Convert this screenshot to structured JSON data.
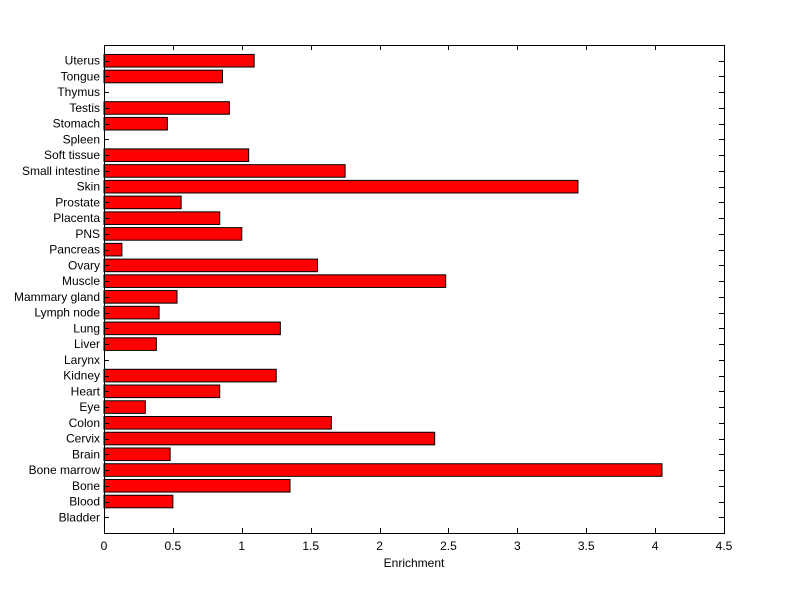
{
  "chart_data": {
    "type": "bar",
    "orientation": "horizontal",
    "title": "",
    "xlabel": "Enrichment",
    "ylabel": "",
    "xlim": [
      0,
      4.5
    ],
    "x_ticks": [
      "0",
      "0.5",
      "1",
      "1.5",
      "2",
      "2.5",
      "3",
      "3.5",
      "4",
      "4.5"
    ],
    "categories": [
      "Bladder",
      "Blood",
      "Bone",
      "Bone marrow",
      "Brain",
      "Cervix",
      "Colon",
      "Eye",
      "Heart",
      "Kidney",
      "Larynx",
      "Liver",
      "Lung",
      "Lymph node",
      "Mammary gland",
      "Muscle",
      "Ovary",
      "Pancreas",
      "PNS",
      "Placenta",
      "Prostate",
      "Skin",
      "Small intestine",
      "Soft tissue",
      "Spleen",
      "Stomach",
      "Testis",
      "Thymus",
      "Tongue",
      "Uterus"
    ],
    "values": [
      0,
      0.5,
      1.35,
      4.05,
      0.48,
      2.4,
      1.65,
      0.3,
      0.84,
      1.25,
      0,
      0.38,
      1.28,
      0.4,
      0.53,
      2.48,
      1.55,
      0.13,
      1.0,
      0.84,
      0.56,
      3.44,
      1.75,
      1.05,
      0,
      0.46,
      0.91,
      0,
      0.86,
      1.09
    ],
    "bar_color": "#ff0000",
    "edge_color": "#000000",
    "grid": false,
    "legend": "none"
  }
}
